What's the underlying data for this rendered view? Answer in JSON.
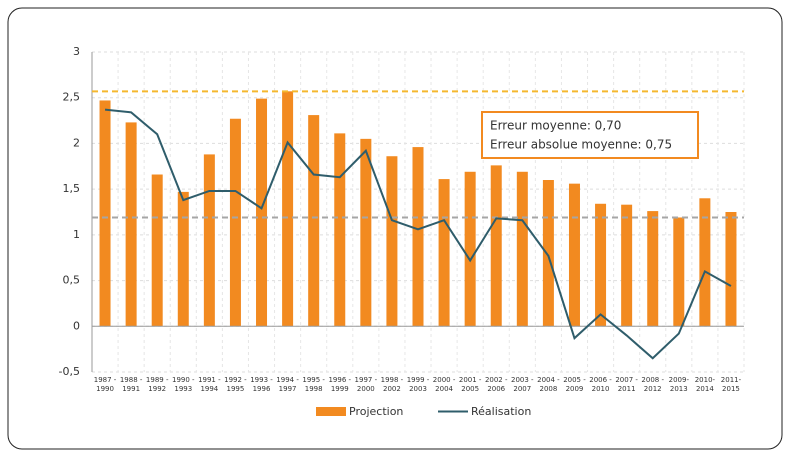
{
  "chart_data": {
    "type": "bar",
    "categories": [
      [
        "1987 -",
        "1990"
      ],
      [
        "1988 -",
        "1991"
      ],
      [
        "1989 -",
        "1992"
      ],
      [
        "1990 -",
        "1993"
      ],
      [
        "1991 -",
        "1994"
      ],
      [
        "1992 -",
        "1995"
      ],
      [
        "1993 -",
        "1996"
      ],
      [
        "1994 -",
        "1997"
      ],
      [
        "1995 -",
        "1998"
      ],
      [
        "1996 -",
        "1999"
      ],
      [
        "1997 -",
        "2000"
      ],
      [
        "1998 -",
        "2002"
      ],
      [
        "1999 -",
        "2003"
      ],
      [
        "2000 -",
        "2004"
      ],
      [
        "2001 -",
        "2005"
      ],
      [
        "2002 -",
        "2006"
      ],
      [
        "2003 -",
        "2007"
      ],
      [
        "2004 -",
        "2008"
      ],
      [
        "2005 -",
        "2009"
      ],
      [
        "2006 -",
        "2010"
      ],
      [
        "2007 -",
        "2011"
      ],
      [
        "2008 -",
        "2012"
      ],
      [
        "2009-",
        "2013"
      ],
      [
        "2010-",
        "2014"
      ],
      [
        "2011-",
        "2015"
      ]
    ],
    "series": [
      {
        "name": "Projection",
        "type": "bar",
        "color": "#f28a20",
        "values": [
          2.47,
          2.23,
          1.66,
          1.47,
          1.88,
          2.27,
          2.49,
          2.57,
          2.31,
          2.11,
          2.05,
          1.86,
          1.96,
          1.61,
          1.69,
          1.76,
          1.69,
          1.6,
          1.56,
          1.34,
          1.33,
          1.26,
          1.19,
          1.4,
          1.25
        ]
      },
      {
        "name": "Réalisation",
        "type": "line",
        "color": "#2f5d6b",
        "values": [
          2.37,
          2.34,
          2.1,
          1.38,
          1.48,
          1.48,
          1.29,
          2.01,
          1.66,
          1.63,
          1.92,
          1.16,
          1.06,
          1.16,
          0.72,
          1.18,
          1.16,
          0.77,
          -0.13,
          0.13,
          -0.1,
          -0.35,
          -0.08,
          0.6,
          0.44
        ]
      }
    ],
    "reference_lines": [
      {
        "value": 2.57,
        "color": "#f5b82e"
      },
      {
        "value": 1.19,
        "color": "#a6a6a6"
      }
    ],
    "annotation": [
      "Erreur moyenne: 0,70",
      "Erreur absolue moyenne: 0,75"
    ],
    "ylim": [
      -0.5,
      3
    ],
    "yticks": [
      {
        "value": -0.5,
        "label": "-0,5"
      },
      0,
      {
        "value": 0.5,
        "label": "0,5"
      },
      1,
      {
        "value": 1.5,
        "label": "1,5"
      },
      2,
      {
        "value": 2.5,
        "label": "2,5"
      },
      3
    ],
    "grid": true,
    "legend": "bottom"
  }
}
